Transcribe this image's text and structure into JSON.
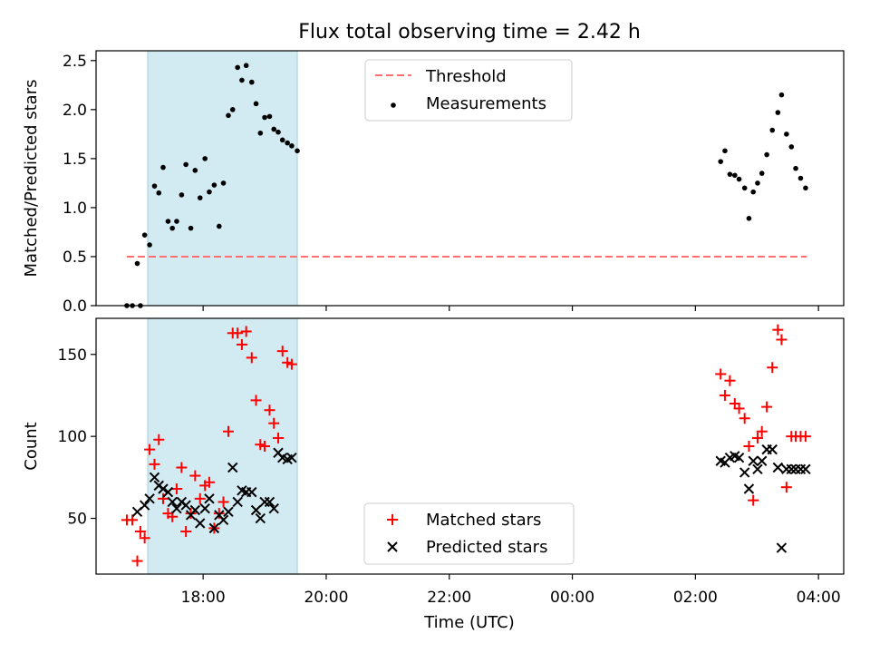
{
  "figure": {
    "title": "Flux total observing time = 2.42 h",
    "xlabel": "Time (UTC)",
    "x_ticks": [
      "18:00",
      "20:00",
      "22:00",
      "00:00",
      "02:00",
      "04:00"
    ]
  },
  "colors": {
    "threshold": "#ff6f6f",
    "measurements": "#000000",
    "matched": "#ff0000",
    "predicted": "#000000",
    "highlight": "#add8e6"
  },
  "chart_data": [
    {
      "type": "scatter",
      "panel": "top",
      "ylabel": "Matched/Predicted stars",
      "xlim": [
        16.26,
        28.41
      ],
      "ylim": [
        0,
        2.6
      ],
      "y_ticks": [
        0.0,
        0.5,
        1.0,
        1.5,
        2.0,
        2.5
      ],
      "highlight_span": [
        17.1,
        19.53
      ],
      "legend": {
        "placement": "upper-center",
        "entries": [
          "Threshold",
          "Measurements"
        ]
      },
      "series": [
        {
          "name": "Threshold",
          "style": "dashed-line",
          "x": [
            16.76,
            27.81
          ],
          "y": [
            0.5,
            0.5
          ]
        },
        {
          "name": "Measurements",
          "style": "dot",
          "x": [
            16.76,
            16.85,
            16.93,
            16.98,
            17.05,
            17.13,
            17.21,
            17.28,
            17.35,
            17.43,
            17.5,
            17.57,
            17.65,
            17.72,
            17.8,
            17.87,
            17.95,
            18.03,
            18.1,
            18.18,
            18.26,
            18.33,
            18.41,
            18.48,
            18.56,
            18.63,
            18.7,
            18.79,
            18.86,
            18.93,
            19.0,
            19.08,
            19.15,
            19.22,
            19.29,
            19.37,
            19.44,
            19.53,
            26.41,
            26.48,
            26.56,
            26.64,
            26.71,
            26.8,
            26.87,
            26.94,
            27.01,
            27.08,
            27.16,
            27.25,
            27.34,
            27.4,
            27.48,
            27.56,
            27.63,
            27.71,
            27.79
          ],
          "y": [
            0.0,
            0.0,
            0.43,
            0.0,
            0.72,
            0.62,
            1.22,
            1.15,
            1.41,
            0.86,
            0.79,
            0.86,
            1.13,
            1.44,
            0.79,
            1.38,
            1.1,
            1.5,
            1.16,
            1.23,
            0.81,
            1.25,
            1.94,
            2.0,
            2.43,
            2.3,
            2.45,
            2.28,
            2.06,
            1.76,
            1.92,
            1.93,
            1.8,
            1.77,
            1.69,
            1.66,
            1.63,
            1.58,
            1.47,
            1.58,
            1.34,
            1.33,
            1.29,
            1.2,
            0.89,
            1.16,
            1.25,
            1.35,
            1.54,
            1.79,
            1.97,
            2.15,
            1.75,
            1.62,
            1.4,
            1.3,
            1.2
          ]
        }
      ]
    },
    {
      "type": "scatter",
      "panel": "bottom",
      "ylabel": "Count",
      "xlim": [
        16.26,
        28.41
      ],
      "ylim": [
        16,
        172
      ],
      "y_ticks": [
        50,
        100,
        150
      ],
      "highlight_span": [
        17.1,
        19.53
      ],
      "legend": {
        "placement": "lower-center",
        "entries": [
          "Matched stars",
          "Predicted stars"
        ]
      },
      "series": [
        {
          "name": "Matched stars",
          "marker": "plus",
          "x": [
            16.76,
            16.85,
            16.93,
            16.98,
            17.05,
            17.13,
            17.21,
            17.28,
            17.35,
            17.43,
            17.5,
            17.57,
            17.65,
            17.72,
            17.8,
            17.87,
            17.95,
            18.03,
            18.1,
            18.18,
            18.26,
            18.33,
            18.41,
            18.48,
            18.56,
            18.63,
            18.7,
            18.79,
            18.86,
            18.93,
            19.0,
            19.08,
            19.15,
            19.22,
            19.29,
            19.37,
            19.44,
            26.41,
            26.48,
            26.56,
            26.64,
            26.71,
            26.8,
            26.87,
            26.94,
            27.01,
            27.08,
            27.16,
            27.25,
            27.34,
            27.4,
            27.48,
            27.56,
            27.63,
            27.71,
            27.79
          ],
          "y": [
            49,
            49,
            24,
            42,
            38,
            92,
            83,
            98,
            62,
            53,
            51,
            68,
            81,
            42,
            53,
            76,
            62,
            70,
            72,
            44,
            53,
            60,
            103,
            163,
            163,
            156,
            164,
            148,
            122,
            95,
            94,
            116,
            108,
            99,
            152,
            145,
            144,
            138,
            125,
            134,
            120,
            117,
            111,
            94,
            61,
            99,
            103,
            118,
            142,
            165,
            159,
            69,
            100,
            100,
            100,
            100
          ],
          "note_trim": "matched series uses first 56 x values"
        },
        {
          "name": "Predicted stars",
          "marker": "x",
          "x": [
            16.93,
            17.05,
            17.13,
            17.21,
            17.28,
            17.35,
            17.43,
            17.5,
            17.57,
            17.65,
            17.72,
            17.8,
            17.87,
            17.95,
            18.03,
            18.1,
            18.18,
            18.26,
            18.33,
            18.41,
            18.48,
            18.56,
            18.63,
            18.7,
            18.79,
            18.86,
            18.93,
            19.0,
            19.08,
            19.15,
            19.22,
            19.29,
            19.37,
            19.44,
            26.41,
            26.48,
            26.56,
            26.64,
            26.71,
            26.8,
            26.87,
            26.94,
            27.01,
            27.08,
            27.16,
            27.25,
            27.34,
            27.4,
            27.48,
            27.56,
            27.63,
            27.71,
            27.79
          ],
          "y": [
            54,
            58,
            62,
            75,
            70,
            68,
            66,
            60,
            56,
            60,
            58,
            52,
            55,
            47,
            56,
            62,
            44,
            52,
            49,
            54,
            81,
            60,
            67,
            66,
            66,
            55,
            50,
            60,
            60,
            56,
            90,
            87,
            86,
            87,
            85,
            84,
            87,
            88,
            87,
            78,
            68,
            85,
            80,
            85,
            92,
            92,
            81,
            32,
            80,
            80,
            80,
            80,
            80
          ]
        }
      ]
    }
  ]
}
